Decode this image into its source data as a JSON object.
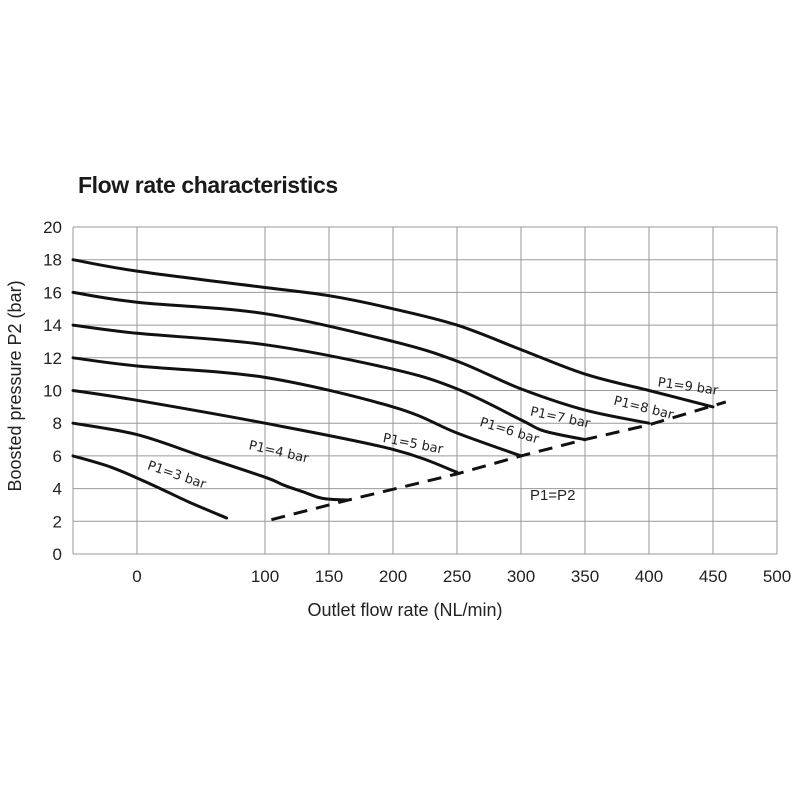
{
  "chart_data": {
    "type": "line",
    "title": "Flow rate characteristics",
    "xlabel": "Outlet flow rate (NL/min)",
    "ylabel": "Boosted pressure P2 (bar)",
    "xlim": [
      -50,
      500
    ],
    "ylim": [
      0,
      20
    ],
    "x_ticks": [
      0,
      100,
      150,
      200,
      250,
      300,
      350,
      400,
      450,
      500
    ],
    "y_ticks": [
      0,
      2,
      4,
      6,
      8,
      10,
      12,
      14,
      16,
      18,
      20
    ],
    "grid": true,
    "series": [
      {
        "name": "P1=3 bar",
        "points": [
          [
            -50,
            6
          ],
          [
            -20,
            5.3
          ],
          [
            10,
            4.3
          ],
          [
            40,
            3.2
          ],
          [
            70,
            2.2
          ]
        ]
      },
      {
        "name": "P1=4 bar",
        "points": [
          [
            -50,
            8
          ],
          [
            0,
            7.3
          ],
          [
            50,
            6
          ],
          [
            100,
            4.7
          ],
          [
            115,
            4.2
          ],
          [
            130,
            3.8
          ],
          [
            145,
            3.4
          ],
          [
            165,
            3.3
          ]
        ]
      },
      {
        "name": "P1=5 bar",
        "points": [
          [
            -50,
            10
          ],
          [
            0,
            9.4
          ],
          [
            100,
            8
          ],
          [
            200,
            6.4
          ],
          [
            250,
            5
          ]
        ]
      },
      {
        "name": "P1=6 bar",
        "points": [
          [
            -50,
            12
          ],
          [
            0,
            11.5
          ],
          [
            100,
            10.8
          ],
          [
            200,
            9
          ],
          [
            250,
            7.4
          ],
          [
            300,
            6
          ]
        ]
      },
      {
        "name": "P1=7 bar",
        "points": [
          [
            -50,
            14
          ],
          [
            0,
            13.5
          ],
          [
            100,
            12.8
          ],
          [
            200,
            11.3
          ],
          [
            250,
            10.1
          ],
          [
            300,
            8.2
          ],
          [
            315,
            7.6
          ],
          [
            330,
            7.3
          ],
          [
            350,
            7
          ]
        ]
      },
      {
        "name": "P1=8 bar",
        "points": [
          [
            -50,
            16
          ],
          [
            0,
            15.4
          ],
          [
            100,
            14.7
          ],
          [
            200,
            13
          ],
          [
            250,
            11.8
          ],
          [
            300,
            10.1
          ],
          [
            350,
            8.8
          ],
          [
            400,
            8
          ]
        ]
      },
      {
        "name": "P1=9 bar",
        "points": [
          [
            -50,
            18
          ],
          [
            0,
            17.3
          ],
          [
            100,
            16.3
          ],
          [
            150,
            15.8
          ],
          [
            200,
            15
          ],
          [
            250,
            14
          ],
          [
            300,
            12.5
          ],
          [
            350,
            11
          ],
          [
            400,
            10
          ],
          [
            450,
            9
          ]
        ]
      }
    ],
    "reference_line": {
      "name": "P1=P2",
      "points": [
        [
          105,
          2.1
        ],
        [
          165,
          3.3
        ],
        [
          250,
          4.9
        ],
        [
          300,
          6
        ],
        [
          350,
          7
        ],
        [
          400,
          7.9
        ],
        [
          460,
          9.3
        ]
      ]
    }
  }
}
